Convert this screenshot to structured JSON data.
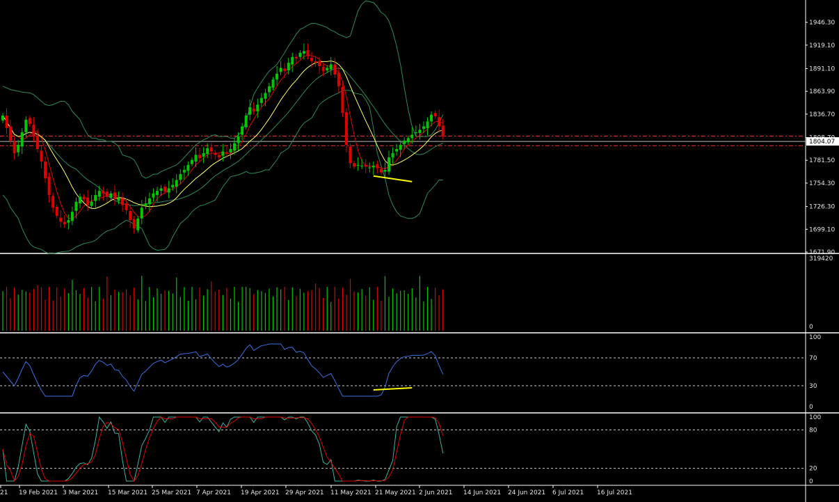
{
  "chart_data": {
    "type": "candlestick",
    "panels": [
      "price",
      "volume",
      "rsi",
      "stochastic"
    ],
    "colors": {
      "background": "#000000",
      "bull": "#00c800",
      "bear": "#e00000",
      "bollinger": "#2e8b57",
      "ma_fast": "#e00000",
      "ma_slow": "#ffff66",
      "rsi": "#3b6fe0",
      "stoch_main": "#3cb4a0",
      "stoch_signal": "#e00000",
      "support_line": "#ffff00",
      "level_line": "#ff3030",
      "current_price_line": "#bbbbbb"
    },
    "price": {
      "y_ticks": [
        "1946.30",
        "1919.10",
        "1891.10",
        "1863.90",
        "1836.70",
        "1808.70",
        "1781.50",
        "1754.30",
        "1726.30",
        "1699.10",
        "1671.90"
      ],
      "ylim": [
        1671.9,
        1973.0
      ],
      "current_price": "1804.07",
      "levels": [
        1810.5,
        1799.0
      ],
      "support_line": [
        [
          1762.8,
          1757.8
        ],
        [
          1762.8,
          1756.0
        ]
      ]
    },
    "volume": {
      "y_ticks": [
        "319420",
        "0"
      ],
      "ylim": [
        0,
        319420
      ]
    },
    "rsi": {
      "y_ticks": [
        "100",
        "70",
        "30",
        "0"
      ],
      "levels": [
        70,
        30
      ]
    },
    "stochastic": {
      "y_ticks": [
        "100",
        "80",
        "20",
        "0"
      ],
      "levels": [
        80,
        20
      ]
    },
    "x_labels": [
      "21",
      "19 Feb 2021",
      "3 Mar 2021",
      "15 Mar 2021",
      "25 Mar 2021",
      "7 Apr 2021",
      "19 Apr 2021",
      "29 Apr 2021",
      "11 May 2021",
      "21 May 2021",
      "2 Jun 2021",
      "14 Jun 2021",
      "24 Jun 2021",
      "6 Jul 2021",
      "16 Jul 2021"
    ],
    "closes": [
      1835,
      1820,
      1805,
      1790,
      1800,
      1815,
      1830,
      1825,
      1810,
      1795,
      1780,
      1760,
      1740,
      1725,
      1715,
      1708,
      1705,
      1710,
      1720,
      1732,
      1738,
      1735,
      1728,
      1732,
      1740,
      1745,
      1742,
      1738,
      1742,
      1735,
      1736,
      1728,
      1722,
      1710,
      1700,
      1712,
      1725,
      1730,
      1736,
      1742,
      1745,
      1748,
      1744,
      1748,
      1752,
      1758,
      1765,
      1770,
      1776,
      1782,
      1788,
      1784,
      1790,
      1796,
      1792,
      1788,
      1785,
      1792,
      1790,
      1795,
      1802,
      1810,
      1822,
      1835,
      1845,
      1840,
      1848,
      1856,
      1862,
      1870,
      1878,
      1885,
      1892,
      1888,
      1898,
      1905,
      1903,
      1910,
      1912,
      1906,
      1900,
      1898,
      1894,
      1888,
      1892,
      1896,
      1884,
      1870,
      1838,
      1800,
      1778,
      1774,
      1776,
      1775,
      1774,
      1773,
      1775,
      1772,
      1767,
      1770,
      1785,
      1790,
      1795,
      1800,
      1805,
      1808,
      1812,
      1815,
      1818,
      1822,
      1828,
      1836,
      1834,
      1822,
      1810
    ],
    "bb_upper": [
      1870,
      1868,
      1866,
      1865,
      1864,
      1863,
      1862,
      1860,
      1856,
      1852,
      1848,
      1847,
      1848,
      1850,
      1852,
      1852,
      1848,
      1840,
      1830,
      1820,
      1812,
      1808,
      1808,
      1806,
      1806,
      1804,
      1804,
      1802,
      1798,
      1788,
      1785,
      1782,
      1774,
      1763,
      1760,
      1762,
      1765,
      1765,
      1768,
      1770,
      1772,
      1776,
      1780,
      1785,
      1790,
      1795,
      1800,
      1803,
      1806,
      1808,
      1811,
      1812,
      1810,
      1810,
      1808,
      1808,
      1812,
      1816,
      1828,
      1845,
      1860,
      1868,
      1875,
      1882,
      1888,
      1896,
      1903,
      1910,
      1918,
      1925,
      1932,
      1938,
      1940,
      1943,
      1945,
      1945,
      1942,
      1940,
      1937,
      1935,
      1932,
      1930,
      1928,
      1930,
      1945,
      1960,
      1968,
      1972,
      1970,
      1965,
      1958,
      1955,
      1948,
      1935,
      1918,
      1896,
      1868,
      1842,
      1822,
      1810,
      1810,
      1810,
      1812,
      1818,
      1826,
      1836
    ],
    "bb_lower": [
      1740,
      1735,
      1725,
      1712,
      1700,
      1690,
      1682,
      1678,
      1675,
      1672,
      1670,
      1670,
      1671,
      1672,
      1673,
      1675,
      1678,
      1680,
      1682,
      1684,
      1686,
      1690,
      1694,
      1697,
      1700,
      1704,
      1707,
      1710,
      1708,
      1705,
      1700,
      1690,
      1680,
      1676,
      1674,
      1675,
      1680,
      1690,
      1698,
      1706,
      1714,
      1720,
      1724,
      1727,
      1728,
      1730,
      1734,
      1742,
      1750,
      1756,
      1762,
      1764,
      1766,
      1768,
      1766,
      1766,
      1768,
      1770,
      1770,
      1776,
      1782,
      1790,
      1796,
      1804,
      1812,
      1820,
      1826,
      1832,
      1840,
      1848,
      1852,
      1855,
      1860,
      1862,
      1865,
      1865,
      1865,
      1862,
      1860,
      1854,
      1845,
      1820,
      1790,
      1760,
      1740,
      1728,
      1720,
      1715,
      1712,
      1712,
      1714,
      1718,
      1730,
      1742,
      1752,
      1758,
      1758
    ]
  }
}
